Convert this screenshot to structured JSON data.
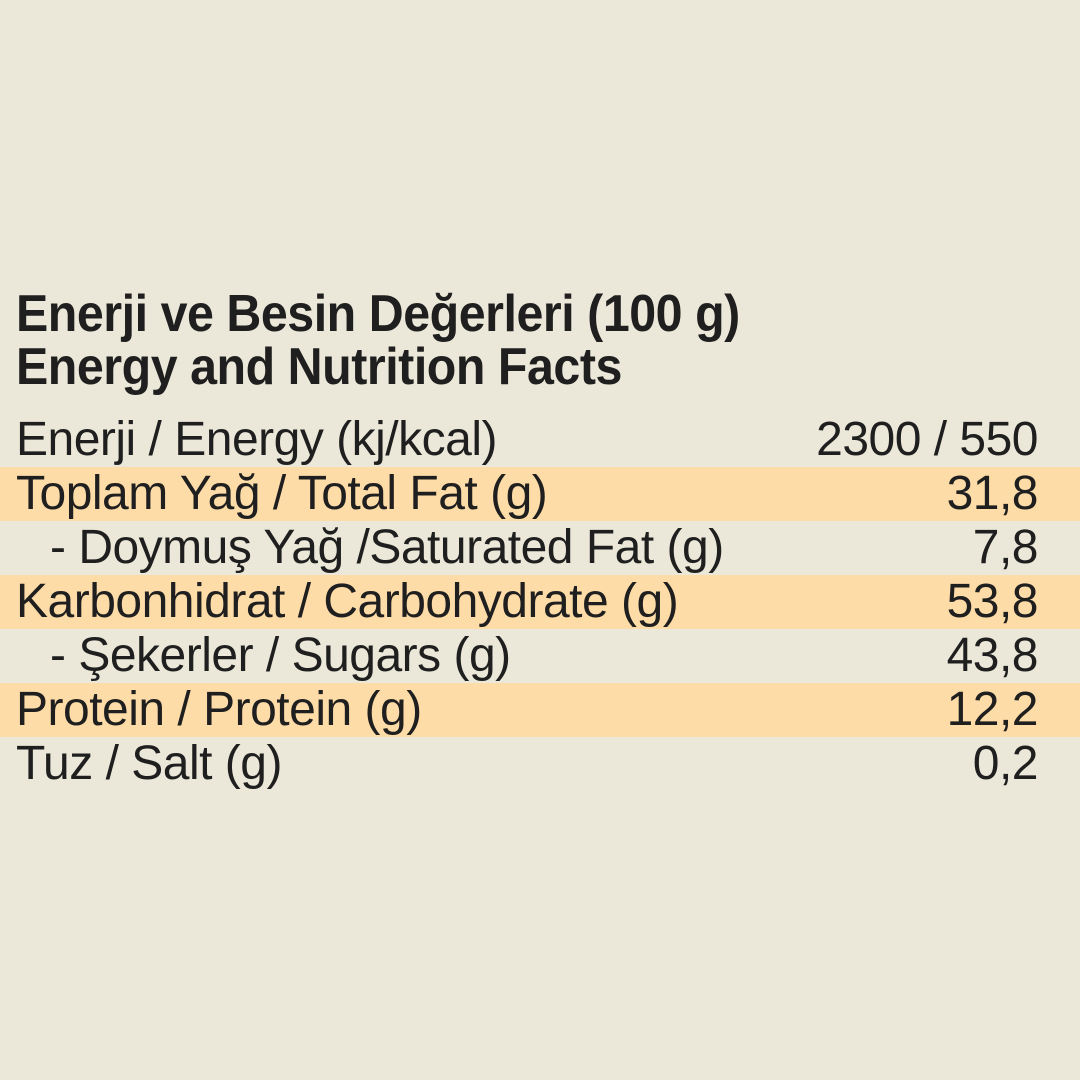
{
  "colors": {
    "background": "#ece8d9",
    "highlight": "#fedca8",
    "text": "#1f1f1f"
  },
  "title": {
    "line1": "Enerji ve Besin Değerleri (100 g)",
    "line2": "Energy and Nutrition Facts"
  },
  "table": {
    "rows": [
      {
        "label": "Enerji / Energy (kj/kcal)",
        "value": "2300 / 550",
        "highlight": false,
        "indent": false
      },
      {
        "label": "Toplam Yağ / Total Fat (g)",
        "value": "31,8",
        "highlight": true,
        "indent": false
      },
      {
        "label": "- Doymuş Yağ /Saturated Fat (g)",
        "value": "7,8",
        "highlight": false,
        "indent": true
      },
      {
        "label": "Karbonhidrat / Carbohydrate (g)",
        "value": "53,8",
        "highlight": true,
        "indent": false
      },
      {
        "label": "- Şekerler / Sugars (g)",
        "value": "43,8",
        "highlight": false,
        "indent": true
      },
      {
        "label": "Protein / Protein (g)",
        "value": "12,2",
        "highlight": true,
        "indent": false
      },
      {
        "label": "Tuz / Salt (g)",
        "value": "0,2",
        "highlight": false,
        "indent": false
      }
    ]
  }
}
